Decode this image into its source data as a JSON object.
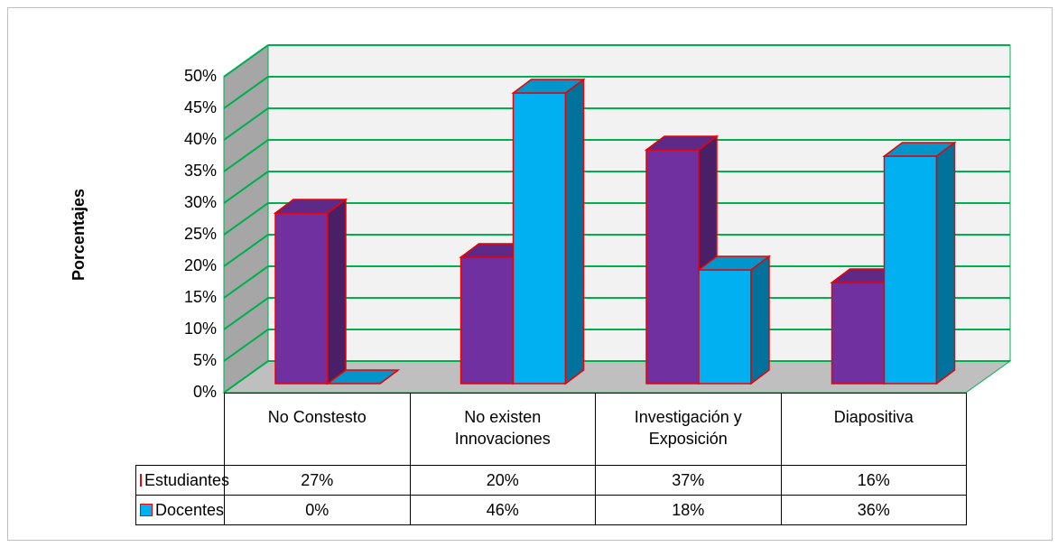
{
  "chart_data": {
    "type": "bar3d",
    "ylabel": "Porcentajes",
    "categories": [
      "No Constesto",
      "No existen Innovaciones",
      "Investigación y Exposición",
      "Diapositiva"
    ],
    "series": [
      {
        "name": "Estudiantes",
        "color": "#7030a0",
        "values": [
          27,
          20,
          37,
          16
        ],
        "value_labels": [
          "27%",
          "20%",
          "37%",
          "16%"
        ]
      },
      {
        "name": "Docentes",
        "color": "#00b0f0",
        "values": [
          0,
          46,
          18,
          36
        ],
        "value_labels": [
          "0%",
          "46%",
          "18%",
          "36%"
        ]
      }
    ],
    "ylim": [
      0,
      50
    ],
    "yticks": [
      {
        "value": 0,
        "label": "0%"
      },
      {
        "value": 5,
        "label": "5%"
      },
      {
        "value": 10,
        "label": "10%"
      },
      {
        "value": 15,
        "label": "15%"
      },
      {
        "value": 20,
        "label": "20%"
      },
      {
        "value": 25,
        "label": "25%"
      },
      {
        "value": 30,
        "label": "30%"
      },
      {
        "value": 35,
        "label": "35%"
      },
      {
        "value": 40,
        "label": "40%"
      },
      {
        "value": 45,
        "label": "45%"
      },
      {
        "value": 50,
        "label": "50%"
      }
    ],
    "grid": true,
    "data_table": true
  }
}
